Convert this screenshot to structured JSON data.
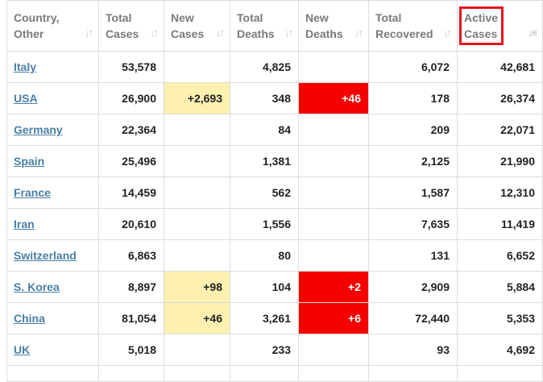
{
  "colors": {
    "new_cases_highlight": "#fdf0b0",
    "new_deaths_highlight": "#f70000",
    "country_link": "#4a7fa6",
    "header_text": "#7a7a7a",
    "annotation_box": "#e3151f"
  },
  "headers": [
    {
      "line1": "Country,",
      "line2": "Other",
      "sort_icon": "sort-icon"
    },
    {
      "line1": "Total",
      "line2": "Cases",
      "sort_icon": "sort-icon"
    },
    {
      "line1": "New",
      "line2": "Cases",
      "sort_icon": "sort-icon"
    },
    {
      "line1": "Total",
      "line2": "Deaths",
      "sort_icon": "sort-icon"
    },
    {
      "line1": "New",
      "line2": "Deaths",
      "sort_icon": "sort-icon"
    },
    {
      "line1": "Total",
      "line2": "Recovered",
      "sort_icon": "sort-icon"
    },
    {
      "line1": "Active",
      "line2": "Cases",
      "sort_icon": "sort-descending-icon"
    }
  ],
  "rows": [
    {
      "country": "Italy",
      "total_cases": "53,578",
      "new_cases": "",
      "total_deaths": "4,825",
      "new_deaths": "",
      "total_recovered": "6,072",
      "active_cases": "42,681"
    },
    {
      "country": "USA",
      "total_cases": "26,900",
      "new_cases": "+2,693",
      "total_deaths": "348",
      "new_deaths": "+46",
      "total_recovered": "178",
      "active_cases": "26,374"
    },
    {
      "country": "Germany",
      "total_cases": "22,364",
      "new_cases": "",
      "total_deaths": "84",
      "new_deaths": "",
      "total_recovered": "209",
      "active_cases": "22,071"
    },
    {
      "country": "Spain",
      "total_cases": "25,496",
      "new_cases": "",
      "total_deaths": "1,381",
      "new_deaths": "",
      "total_recovered": "2,125",
      "active_cases": "21,990"
    },
    {
      "country": "France",
      "total_cases": "14,459",
      "new_cases": "",
      "total_deaths": "562",
      "new_deaths": "",
      "total_recovered": "1,587",
      "active_cases": "12,310"
    },
    {
      "country": "Iran",
      "total_cases": "20,610",
      "new_cases": "",
      "total_deaths": "1,556",
      "new_deaths": "",
      "total_recovered": "7,635",
      "active_cases": "11,419"
    },
    {
      "country": "Switzerland",
      "total_cases": "6,863",
      "new_cases": "",
      "total_deaths": "80",
      "new_deaths": "",
      "total_recovered": "131",
      "active_cases": "6,652"
    },
    {
      "country": "S. Korea",
      "total_cases": "8,897",
      "new_cases": "+98",
      "total_deaths": "104",
      "new_deaths": "+2",
      "total_recovered": "2,909",
      "active_cases": "5,884"
    },
    {
      "country": "China",
      "total_cases": "81,054",
      "new_cases": "+46",
      "total_deaths": "3,261",
      "new_deaths": "+6",
      "total_recovered": "72,440",
      "active_cases": "5,353"
    },
    {
      "country": "UK",
      "total_cases": "5,018",
      "new_cases": "",
      "total_deaths": "233",
      "new_deaths": "",
      "total_recovered": "93",
      "active_cases": "4,692"
    }
  ]
}
